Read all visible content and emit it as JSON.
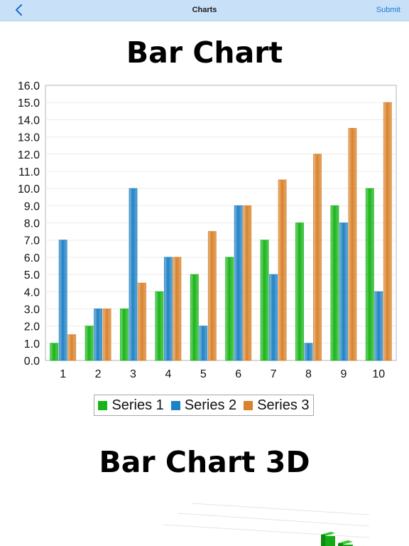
{
  "navbar": {
    "back_icon": "chevron-left-icon",
    "title": "Charts",
    "submit_label": "Submit"
  },
  "sections": {
    "bar_chart_title": "Bar Chart",
    "bar_chart_3d_title": "Bar Chart 3D"
  },
  "colors": {
    "navbar_bg": "#c9e1f8",
    "accent": "#1b78d0",
    "series1": "#18b418",
    "series2": "#1f82c4",
    "series3": "#d9822b"
  },
  "chart_data": {
    "type": "bar",
    "title": "Bar Chart",
    "categories": [
      "1",
      "2",
      "3",
      "4",
      "5",
      "6",
      "7",
      "8",
      "9",
      "10"
    ],
    "series": [
      {
        "name": "Series 1",
        "color": "#18b418",
        "values": [
          1,
          2,
          3,
          4,
          5,
          6,
          7,
          8,
          9,
          10
        ]
      },
      {
        "name": "Series 2",
        "color": "#1f82c4",
        "values": [
          7,
          3,
          10,
          6,
          2,
          9,
          5,
          1,
          8,
          4
        ]
      },
      {
        "name": "Series 3",
        "color": "#d9822b",
        "values": [
          1.5,
          3,
          4.5,
          6,
          7.5,
          9,
          10.5,
          12,
          13.5,
          15
        ]
      }
    ],
    "ylim": [
      0,
      16
    ],
    "ytick_step": 1,
    "ytick_labels": [
      "0.0",
      "1.0",
      "2.0",
      "3.0",
      "4.0",
      "5.0",
      "6.0",
      "7.0",
      "8.0",
      "9.0",
      "10.0",
      "11.0",
      "12.0",
      "13.0",
      "14.0",
      "15.0",
      "16.0"
    ],
    "xlabel": "",
    "ylabel": "",
    "grid": true,
    "legend_position": "bottom-center"
  }
}
